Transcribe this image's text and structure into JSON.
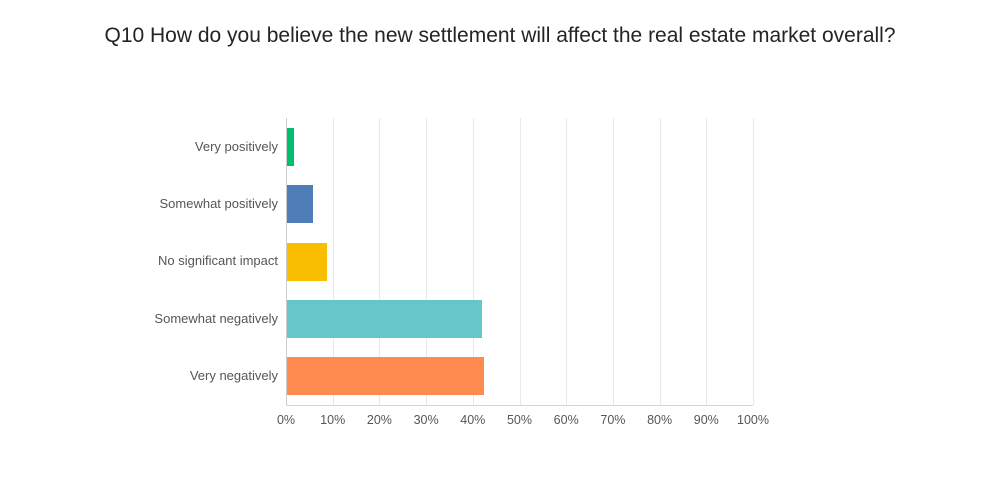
{
  "title": "Q10 How do you believe the new settlement will affect the real estate market overall?",
  "chart_data": {
    "type": "bar",
    "orientation": "horizontal",
    "title": "Q10 How do you believe the new settlement will affect the real estate market overall?",
    "categories": [
      "Very positively",
      "Somewhat positively",
      "No significant impact",
      "Somewhat negatively",
      "Very negatively"
    ],
    "values": [
      1.4,
      5.6,
      8.6,
      41.7,
      42.1
    ],
    "unit": "%",
    "bar_colors": [
      "#00BF6F",
      "#4F7DB8",
      "#F9BE00",
      "#67C6C9",
      "#FF8B50"
    ],
    "x_tick_labels": [
      "0%",
      "10%",
      "20%",
      "30%",
      "40%",
      "50%",
      "60%",
      "70%",
      "80%",
      "90%",
      "100%"
    ],
    "xlim": [
      0,
      100
    ],
    "grid": "vertical",
    "legend_position": "none",
    "data_labels": "none"
  },
  "style_colors": {
    "gridline": "#e9e9e9",
    "axis_line": "#cccccc",
    "label_text": "#54565b",
    "title_text": "#222426",
    "background": "#ffffff"
  }
}
